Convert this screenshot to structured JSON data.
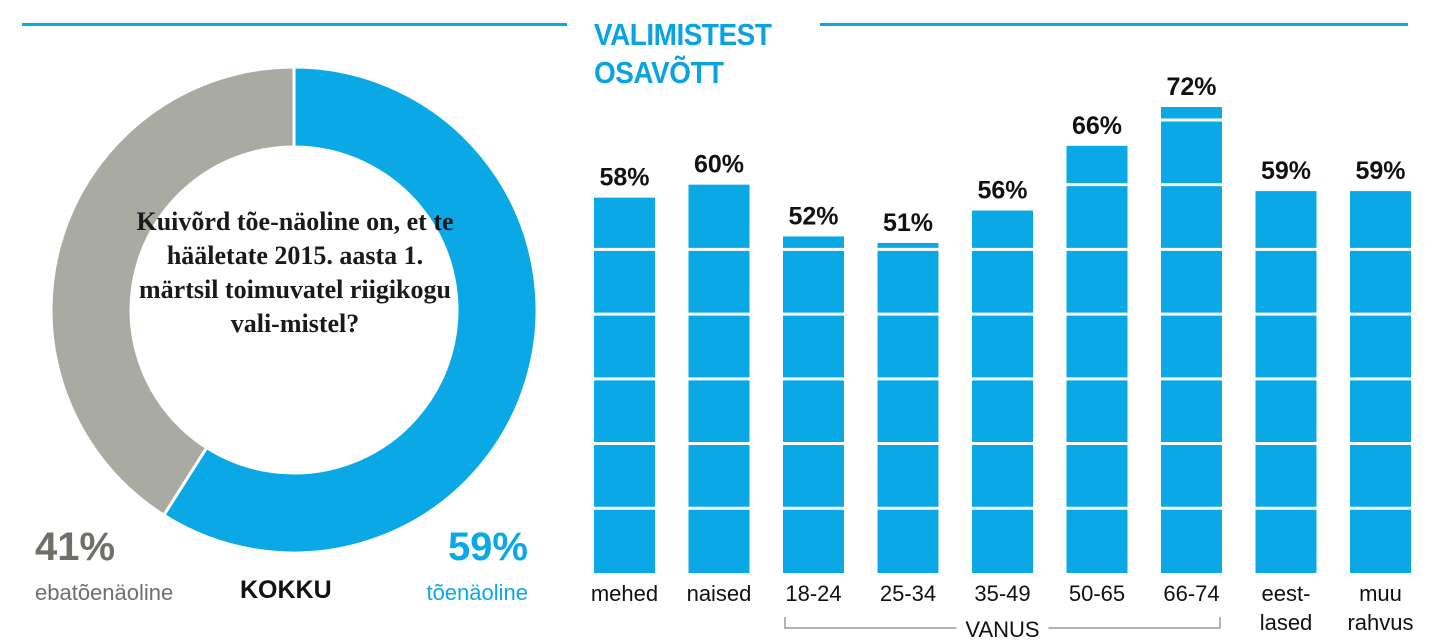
{
  "header": {
    "title_line1": "VALIMISTEST",
    "title_line2": "OSAVÕTT"
  },
  "donut": {
    "question": "Kuivõrd tõe-näoline on, et te hääletate 2015. aasta 1. märtsil toimuvatel riigikogu vali-mistel?",
    "total_label": "KOKKU",
    "left_value_label": "41%",
    "left_name": "ebatõenäoline",
    "right_value_label": "59%",
    "right_name": "tõenäoline"
  },
  "age_group_label": "VANUS",
  "colors": {
    "accent": "#0aa9e6",
    "title": "#0aa3e2",
    "grey": "#a9aaa2",
    "dark_grey": "#6f706a",
    "text": "#111111",
    "bracket": "#9a9a9a"
  },
  "chart_data": [
    {
      "type": "pie",
      "slices": [
        {
          "name": "tõenäoline",
          "value": 59
        },
        {
          "name": "ebatõenäoline",
          "value": 41
        }
      ]
    },
    {
      "type": "bar",
      "categories": [
        "mehed",
        "naised",
        "18-24",
        "25-34",
        "35-49",
        "50-65",
        "66-74",
        "eest-\nlased",
        "muu\nrahvus"
      ],
      "values": [
        58,
        60,
        52,
        51,
        56,
        66,
        72,
        59,
        59
      ],
      "value_labels": [
        "58%",
        "60%",
        "52%",
        "51%",
        "56%",
        "66%",
        "72%",
        "59%",
        "59%"
      ],
      "grid_values": [
        10,
        20,
        30,
        40,
        50,
        60,
        70
      ],
      "ylim": [
        0,
        72
      ],
      "group": {
        "label": "VANUS",
        "from_index": 2,
        "to_index": 6
      }
    }
  ]
}
